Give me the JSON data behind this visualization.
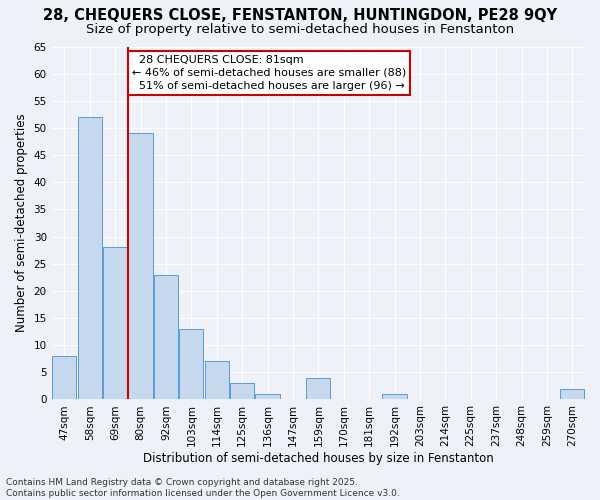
{
  "title": "28, CHEQUERS CLOSE, FENSTANTON, HUNTINGDON, PE28 9QY",
  "subtitle": "Size of property relative to semi-detached houses in Fenstanton",
  "xlabel": "Distribution of semi-detached houses by size in Fenstanton",
  "ylabel": "Number of semi-detached properties",
  "categories": [
    "47sqm",
    "58sqm",
    "69sqm",
    "80sqm",
    "92sqm",
    "103sqm",
    "114sqm",
    "125sqm",
    "136sqm",
    "147sqm",
    "159sqm",
    "170sqm",
    "181sqm",
    "192sqm",
    "203sqm",
    "214sqm",
    "225sqm",
    "237sqm",
    "248sqm",
    "259sqm",
    "270sqm"
  ],
  "values": [
    8,
    52,
    28,
    49,
    23,
    13,
    7,
    3,
    1,
    0,
    4,
    0,
    0,
    1,
    0,
    0,
    0,
    0,
    0,
    0,
    2
  ],
  "bar_color": "#c5d8ed",
  "bar_edge_color": "#5b9bd5",
  "highlight_bar_index": 3,
  "vline_x": 3,
  "highlight_label": "28 CHEQUERS CLOSE: 81sqm",
  "highlight_pct_smaller": "46% of semi-detached houses are smaller (88)",
  "highlight_pct_larger": "51% of semi-detached houses are larger (96)",
  "vline_color": "#cc0000",
  "annotation_box_color": "#cc0000",
  "ylim": [
    0,
    65
  ],
  "yticks": [
    0,
    5,
    10,
    15,
    20,
    25,
    30,
    35,
    40,
    45,
    50,
    55,
    60,
    65
  ],
  "background_color": "#eef2f8",
  "grid_color": "#ffffff",
  "footer": "Contains HM Land Registry data © Crown copyright and database right 2025.\nContains public sector information licensed under the Open Government Licence v3.0.",
  "title_fontsize": 10.5,
  "subtitle_fontsize": 9.5,
  "axis_label_fontsize": 8.5,
  "tick_fontsize": 7.5,
  "annotation_fontsize": 8,
  "footer_fontsize": 6.5
}
